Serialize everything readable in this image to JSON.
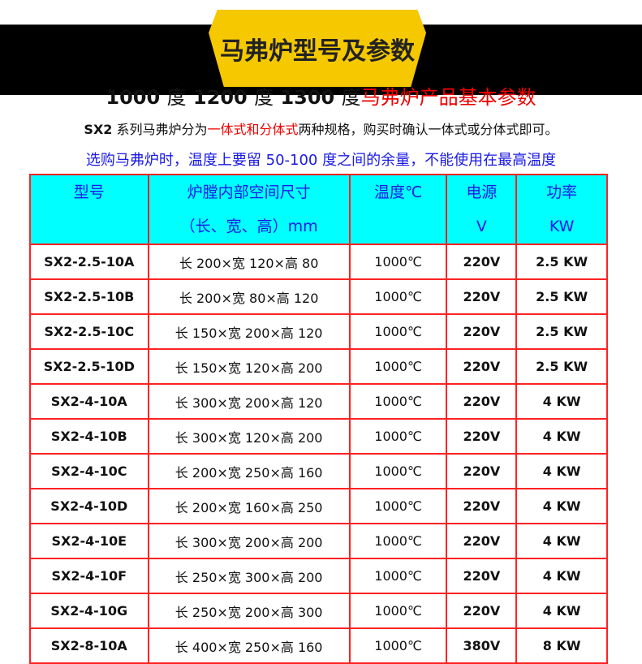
{
  "banner": {
    "title": "马弗炉型号及参数"
  },
  "heading": {
    "t1": "1000",
    "u1": "度",
    "t2": "1200",
    "u2": "度",
    "t3": "1300",
    "u3": "度",
    "red": "马弗炉产品基本参数"
  },
  "note": {
    "prefix": "SX2",
    "mid": "系列马弗炉分为",
    "red": "一体式和分体式",
    "suffix": "两种规格，购买时确认一体式或分体式即可。"
  },
  "warning": "选购马弗炉时，温度上要留 50-100 度之间的余量，不能使用在最高温度",
  "table": {
    "headers": [
      {
        "l1": "型号",
        "l2": ""
      },
      {
        "l1": "炉膛内部空间尺寸",
        "l2": "（长、宽、高）mm"
      },
      {
        "l1": "温度℃",
        "l2": ""
      },
      {
        "l1": "电源",
        "l2": "V"
      },
      {
        "l1": "功率",
        "l2": "KW"
      }
    ],
    "rows": [
      [
        "SX2-2.5-10A",
        "长 200×宽 120×高 80",
        "1000℃",
        "220V",
        "2.5 KW"
      ],
      [
        "SX2-2.5-10B",
        "长 200×宽 80×高 120",
        "1000℃",
        "220V",
        "2.5 KW"
      ],
      [
        "SX2-2.5-10C",
        "长 150×宽 200×高 120",
        "1000℃",
        "220V",
        "2.5 KW"
      ],
      [
        "SX2-2.5-10D",
        "长 150×宽 120×高 200",
        "1000℃",
        "220V",
        "2.5 KW"
      ],
      [
        "SX2-4-10A",
        "长 300×宽 200×高 120",
        "1000℃",
        "220V",
        "4 KW"
      ],
      [
        "SX2-4-10B",
        "长 300×宽 120×高 200",
        "1000℃",
        "220V",
        "4 KW"
      ],
      [
        "SX2-4-10C",
        "长 200×宽 250×高 160",
        "1000℃",
        "220V",
        "4 KW"
      ],
      [
        "SX2-4-10D",
        "长 200×宽 160×高 250",
        "1000℃",
        "220V",
        "4 KW"
      ],
      [
        "SX2-4-10E",
        "长 300×宽 200×高 200",
        "1000℃",
        "220V",
        "4 KW"
      ],
      [
        "SX2-4-10F",
        "长 250×宽 300×高 200",
        "1000℃",
        "220V",
        "4 KW"
      ],
      [
        "SX2-4-10G",
        "长 250×宽 200×高 300",
        "1000℃",
        "220V",
        "4 KW"
      ],
      [
        "SX2-8-10A",
        "长 400×宽 250×高 160",
        "1000℃",
        "380V",
        "8 KW"
      ]
    ]
  }
}
